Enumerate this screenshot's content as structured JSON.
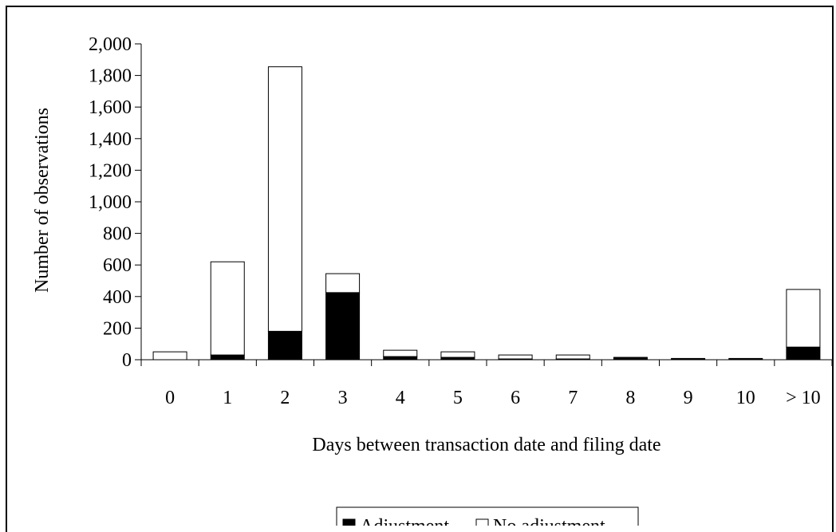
{
  "chart_data": {
    "type": "bar",
    "stacked": true,
    "categories": [
      "0",
      "1",
      "2",
      "3",
      "4",
      "5",
      "6",
      "7",
      "8",
      "9",
      "10",
      "> 10"
    ],
    "series": [
      {
        "name": "Adjustment",
        "color": "#000000",
        "values": [
          0,
          30,
          180,
          425,
          20,
          15,
          5,
          5,
          15,
          8,
          8,
          80
        ]
      },
      {
        "name": "No adjustment",
        "color": "#ffffff",
        "values": [
          50,
          590,
          1675,
          120,
          40,
          35,
          25,
          25,
          0,
          0,
          0,
          365
        ]
      }
    ],
    "xlabel": "Days between transaction date and filing date",
    "ylabel": "Number of observations",
    "ylim": [
      0,
      2000
    ],
    "yticks": [
      "0",
      "200",
      "400",
      "600",
      "800",
      "1,000",
      "1,200",
      "1,400",
      "1,600",
      "1,800",
      "2,000"
    ],
    "grid": false,
    "legend": "bottom-center"
  }
}
